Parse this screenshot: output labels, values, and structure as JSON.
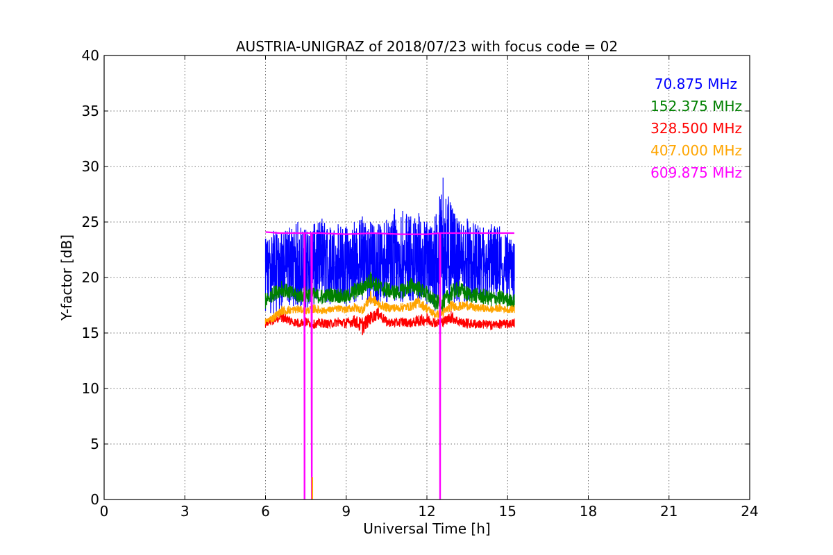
{
  "chart_data": {
    "type": "line",
    "title": "AUSTRIA-UNIGRAZ of 2018/07/23 with focus code = 02",
    "xlabel": "Universal Time [h]",
    "ylabel": "Y-factor [dB]",
    "xlim": [
      0,
      24
    ],
    "ylim": [
      0,
      40
    ],
    "xticks": [
      0,
      3,
      6,
      9,
      12,
      15,
      18,
      21,
      24
    ],
    "yticks": [
      0,
      5,
      10,
      15,
      20,
      25,
      30,
      35,
      40
    ],
    "grid": true,
    "legend_placement": "top-right",
    "series": [
      {
        "name": "70.875 MHz",
        "color": "#0000ff",
        "x": [
          6.0,
          6.3,
          6.6,
          6.9,
          7.2,
          7.5,
          7.8,
          8.1,
          8.4,
          8.7,
          9.0,
          9.3,
          9.6,
          9.9,
          10.2,
          10.5,
          10.8,
          11.1,
          11.4,
          11.7,
          12.0,
          12.3,
          12.6,
          12.9,
          13.2,
          13.5,
          13.8,
          14.1,
          14.4,
          14.7,
          15.0,
          15.25
        ],
        "y": [
          20.5,
          21.5,
          20.8,
          21.2,
          20.6,
          21.0,
          20.7,
          21.3,
          20.9,
          21.1,
          20.5,
          21.0,
          21.4,
          21.2,
          20.8,
          21.0,
          21.5,
          21.3,
          20.9,
          21.2,
          21.0,
          20.8,
          22.0,
          21.5,
          20.9,
          21.1,
          20.8,
          20.6,
          21.0,
          20.7,
          20.5,
          20.6
        ],
        "y_min": [
          17.0,
          16.5,
          17.2,
          17.5,
          17.3,
          17.0,
          17.5,
          17.8,
          17.6,
          17.9,
          17.4,
          17.8,
          18.0,
          17.6,
          17.7,
          17.8,
          17.9,
          17.8,
          17.9,
          18.0,
          17.5,
          17.0,
          17.5,
          17.8,
          17.6,
          17.8,
          17.7,
          17.6,
          17.9,
          17.8,
          17.5,
          17.6
        ],
        "y_max": [
          23.5,
          24.2,
          24.0,
          24.5,
          25.0,
          24.3,
          24.8,
          25.3,
          24.5,
          24.8,
          24.6,
          25.0,
          25.5,
          25.0,
          24.8,
          25.2,
          26.2,
          26.0,
          25.5,
          25.8,
          25.0,
          25.5,
          29.0,
          26.5,
          25.0,
          25.3,
          24.8,
          24.5,
          24.8,
          24.6,
          24.0,
          23.0
        ]
      },
      {
        "name": "152.375 MHz",
        "color": "#008000",
        "x": [
          6.0,
          6.3,
          6.6,
          6.9,
          7.2,
          7.5,
          7.8,
          8.1,
          8.4,
          8.7,
          9.0,
          9.3,
          9.6,
          9.9,
          10.2,
          10.5,
          10.8,
          11.1,
          11.4,
          11.7,
          12.0,
          12.3,
          12.6,
          12.9,
          13.2,
          13.5,
          13.8,
          14.1,
          14.4,
          14.7,
          15.0,
          15.25
        ],
        "y": [
          17.8,
          18.5,
          19.0,
          18.6,
          18.3,
          18.5,
          18.4,
          18.2,
          18.4,
          18.3,
          18.2,
          18.8,
          19.0,
          19.8,
          19.2,
          18.9,
          18.6,
          18.8,
          19.3,
          19.0,
          18.5,
          17.8,
          17.6,
          18.5,
          19.0,
          18.5,
          18.4,
          18.3,
          18.1,
          18.2,
          17.9,
          17.8
        ],
        "y_min": [
          17.2,
          17.9,
          18.3,
          18.0,
          17.7,
          17.8,
          17.7,
          17.6,
          17.8,
          17.7,
          17.6,
          18.0,
          18.3,
          19.0,
          18.5,
          18.2,
          18.0,
          18.1,
          18.6,
          18.3,
          17.8,
          17.1,
          16.9,
          17.8,
          18.2,
          17.8,
          17.7,
          17.6,
          17.4,
          17.5,
          17.3,
          17.2
        ],
        "y_max": [
          18.6,
          19.2,
          19.7,
          19.3,
          19.0,
          19.2,
          19.1,
          18.9,
          19.1,
          19.0,
          18.9,
          19.5,
          19.7,
          20.5,
          19.9,
          19.6,
          19.3,
          19.5,
          20.0,
          19.7,
          19.2,
          18.5,
          18.4,
          19.4,
          19.7,
          19.2,
          19.1,
          19.0,
          18.8,
          18.9,
          18.6,
          18.5
        ]
      },
      {
        "name": "328.500 MHz",
        "color": "#ff0000",
        "x": [
          6.0,
          6.3,
          6.6,
          6.9,
          7.2,
          7.5,
          7.8,
          8.1,
          8.4,
          8.7,
          9.0,
          9.3,
          9.6,
          9.9,
          10.2,
          10.5,
          10.8,
          11.1,
          11.4,
          11.7,
          12.0,
          12.3,
          12.6,
          12.9,
          13.2,
          13.5,
          13.8,
          14.1,
          14.4,
          14.7,
          15.0,
          15.25
        ],
        "y": [
          15.8,
          16.2,
          16.6,
          16.1,
          15.9,
          16.0,
          15.8,
          15.9,
          15.8,
          16.0,
          15.9,
          16.1,
          15.6,
          16.4,
          16.8,
          16.0,
          15.9,
          16.0,
          15.9,
          16.1,
          16.3,
          15.9,
          16.0,
          16.5,
          16.0,
          15.9,
          15.8,
          15.8,
          15.7,
          15.8,
          15.8,
          15.9
        ],
        "y_min": [
          15.5,
          15.8,
          16.0,
          15.7,
          15.5,
          15.6,
          15.4,
          15.5,
          15.4,
          15.6,
          15.4,
          15.6,
          14.8,
          15.8,
          16.2,
          15.6,
          15.5,
          15.6,
          15.5,
          15.6,
          15.7,
          15.5,
          15.6,
          15.9,
          15.6,
          15.4,
          15.4,
          15.4,
          15.3,
          15.4,
          15.4,
          15.5
        ],
        "y_max": [
          16.2,
          16.6,
          17.1,
          16.5,
          16.3,
          16.4,
          16.2,
          16.3,
          16.2,
          16.4,
          16.3,
          16.6,
          16.4,
          16.9,
          17.3,
          16.4,
          16.3,
          16.4,
          16.3,
          16.6,
          16.8,
          16.3,
          16.4,
          17.0,
          16.4,
          16.3,
          16.2,
          16.2,
          16.1,
          16.2,
          16.2,
          16.3
        ]
      },
      {
        "name": "407.000 MHz",
        "color": "#ffa500",
        "x": [
          6.0,
          6.3,
          6.6,
          6.9,
          7.2,
          7.5,
          7.8,
          8.1,
          8.4,
          8.7,
          9.0,
          9.3,
          9.6,
          9.9,
          10.2,
          10.5,
          10.8,
          11.1,
          11.4,
          11.7,
          12.0,
          12.3,
          12.6,
          12.9,
          13.2,
          13.5,
          13.8,
          14.1,
          14.4,
          14.7,
          15.0,
          15.25
        ],
        "y": [
          16.0,
          16.4,
          17.0,
          17.0,
          17.1,
          17.0,
          17.2,
          17.0,
          17.1,
          17.2,
          17.1,
          17.3,
          17.0,
          18.2,
          17.6,
          17.3,
          17.2,
          17.3,
          17.4,
          17.8,
          17.2,
          16.6,
          16.8,
          17.4,
          17.4,
          17.5,
          17.2,
          17.2,
          17.1,
          17.2,
          17.1,
          17.1
        ],
        "y_min": [
          15.8,
          16.0,
          16.6,
          16.7,
          16.8,
          16.7,
          16.8,
          16.7,
          16.8,
          16.9,
          16.8,
          16.9,
          16.7,
          17.6,
          17.2,
          16.9,
          16.9,
          16.9,
          17.0,
          17.3,
          16.8,
          16.3,
          16.4,
          17.0,
          17.0,
          17.1,
          16.9,
          16.9,
          16.8,
          16.9,
          16.8,
          16.8
        ],
        "y_max": [
          16.3,
          16.8,
          17.4,
          17.4,
          17.5,
          17.3,
          17.6,
          17.3,
          17.4,
          17.5,
          17.4,
          17.7,
          17.4,
          18.8,
          18.0,
          17.7,
          17.6,
          17.7,
          17.8,
          18.3,
          17.6,
          17.0,
          17.2,
          17.9,
          17.8,
          17.9,
          17.6,
          17.6,
          17.4,
          17.6,
          17.4,
          17.5
        ]
      },
      {
        "name": "609.875 MHz",
        "color": "#ff00ff",
        "x": [
          6.0,
          6.5,
          7.0,
          7.44,
          7.45,
          7.46,
          7.5,
          7.7,
          7.72,
          7.73,
          7.74,
          8.0,
          9.0,
          10.0,
          11.0,
          12.0,
          12.48,
          12.49,
          12.5,
          12.51,
          12.6,
          13.0,
          14.0,
          15.0,
          15.25
        ],
        "y": [
          24.1,
          24.0,
          24.0,
          24.0,
          0.0,
          24.0,
          24.0,
          24.0,
          0.0,
          24.0,
          24.0,
          24.0,
          23.9,
          24.0,
          23.9,
          23.9,
          24.0,
          0.0,
          24.0,
          24.0,
          24.0,
          24.0,
          24.0,
          24.0,
          24.0
        ]
      }
    ],
    "dropouts": [
      {
        "x": 7.45,
        "series": "609.875 MHz"
      },
      {
        "x": 7.72,
        "series": "609.875 MHz"
      },
      {
        "x": 7.74,
        "series": "407.000 MHz",
        "y_end": 2.0
      },
      {
        "x": 12.49,
        "series": "609.875 MHz"
      }
    ]
  }
}
